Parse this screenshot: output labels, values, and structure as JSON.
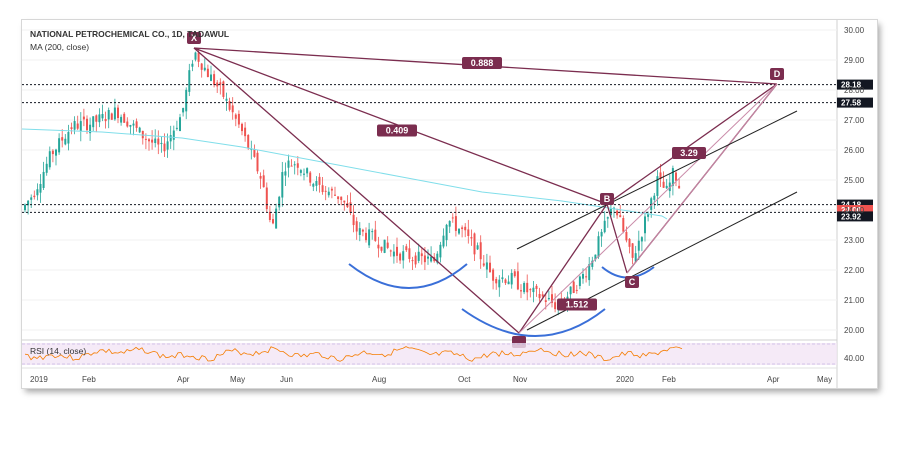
{
  "chart_data": {
    "type": "candlestick",
    "title": "NATIONAL PETROCHEMICAL CO., 1D, TADAWUL",
    "indicator_ma": "MA (200, close)",
    "indicator_rsi": "RSI (14, close)",
    "ylim": [
      19.7,
      30.2
    ],
    "y_ticks": [
      "30.00",
      "29.00",
      "28.00",
      "27.00",
      "26.00",
      "25.00",
      "24.00",
      "23.00",
      "22.00",
      "21.00",
      "20.00"
    ],
    "x_ticks": [
      "2019",
      "Feb",
      "Apr",
      "May",
      "Jun",
      "Aug",
      "Oct",
      "Nov",
      "2020",
      "Feb",
      "Apr",
      "May"
    ],
    "price_lines": [
      {
        "label": "28.18",
        "color": "#131722",
        "text_color": "#ffffff"
      },
      {
        "label": "27.58",
        "color": "#131722",
        "text_color": "#ffffff"
      },
      {
        "label": "24.18",
        "color": "#131722",
        "text_color": "#ffffff"
      },
      {
        "label": "24.00",
        "color": "#ef5350",
        "text_color": "#ffffff"
      },
      {
        "label": "23.92",
        "color": "#131722",
        "text_color": "#ffffff"
      }
    ],
    "rsi_tick": "40.00",
    "harmonic_points": [
      {
        "label": "X",
        "price": 29.4
      },
      {
        "label": "A",
        "price": 19.9
      },
      {
        "label": "B",
        "price": 24.2
      },
      {
        "label": "C",
        "price": 21.9
      },
      {
        "label": "D",
        "price": 28.2
      }
    ],
    "ratios": [
      {
        "label": "0.888"
      },
      {
        "label": "0.409"
      },
      {
        "label": "3.29"
      },
      {
        "label": "1.512"
      }
    ],
    "colors": {
      "up": "#26a69a",
      "down": "#ef5350",
      "ma": "#80deea",
      "pattern": "#7b2d4f",
      "arc": "#3a6fd8",
      "rsi": "#f57c00",
      "rsi_bg": "#f3e5f5"
    }
  }
}
